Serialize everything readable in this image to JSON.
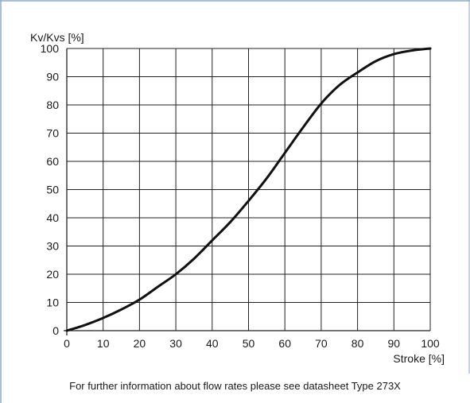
{
  "footnote": "For further information about flow rates please see datasheet Type 273X",
  "colors": {
    "frame": "#8fa9c8",
    "grid": "#222222",
    "curve": "#111111"
  },
  "chart_data": {
    "type": "line",
    "title": "",
    "xlabel": "Stroke [%]",
    "ylabel": "Kv/Kvs [%]",
    "xlim": [
      0,
      100
    ],
    "ylim": [
      0,
      100
    ],
    "xticks": [
      0,
      10,
      20,
      30,
      40,
      50,
      60,
      70,
      80,
      90,
      100
    ],
    "yticks": [
      0,
      10,
      20,
      30,
      40,
      50,
      60,
      70,
      80,
      90,
      100
    ],
    "grid": true,
    "series": [
      {
        "x": [
          0,
          5,
          10,
          15,
          20,
          25,
          30,
          35,
          40,
          45,
          50,
          55,
          60,
          65,
          70,
          75,
          80,
          85,
          90,
          95,
          100
        ],
        "y": [
          0,
          2,
          4.5,
          7.5,
          11,
          15.5,
          20,
          25.5,
          32,
          38.5,
          46,
          54,
          63,
          72,
          80.5,
          87,
          91.5,
          95.5,
          98,
          99.3,
          100
        ]
      }
    ]
  }
}
